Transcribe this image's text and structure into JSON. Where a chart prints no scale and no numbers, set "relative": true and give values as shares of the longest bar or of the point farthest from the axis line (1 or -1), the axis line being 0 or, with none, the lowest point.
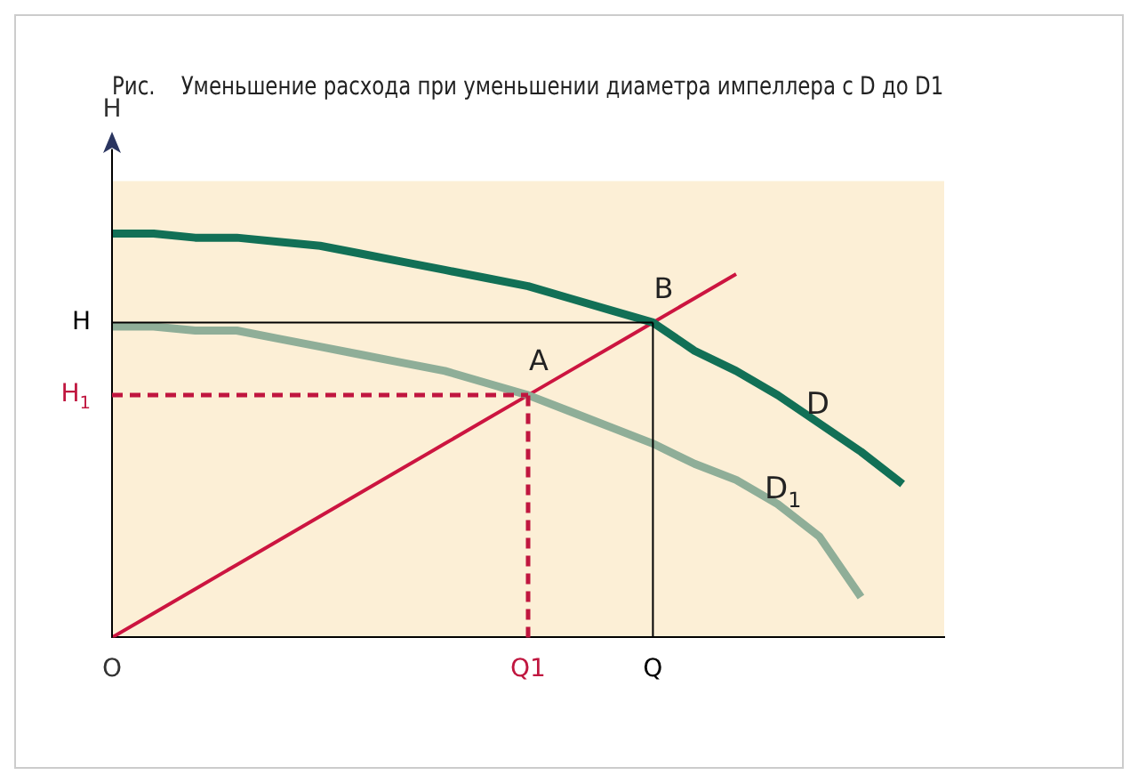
{
  "chart_data": {
    "type": "line",
    "title": "Рис.    Уменьшение расхода при уменьшении диаметра импеллера с D до D1",
    "ylabel": "H",
    "relative": true,
    "legend": false,
    "grid": false,
    "marker": "none",
    "categories": [
      "O",
      null,
      null,
      null,
      null,
      null,
      null,
      null,
      null,
      null,
      "Q1",
      null,
      null,
      "Q",
      null,
      null,
      null,
      null,
      null,
      null,
      null
    ],
    "series": [
      {
        "name": "D",
        "color": "#127056",
        "values": [
          1.0,
          1.0,
          0.99,
          0.99,
          0.98,
          0.97,
          0.95,
          0.93,
          0.91,
          0.89,
          0.87,
          0.84,
          0.81,
          0.78,
          0.71,
          0.66,
          0.6,
          0.53,
          0.46,
          0.38,
          null
        ]
      },
      {
        "name": "D$_{1}$",
        "color": "#8fae98",
        "values": [
          0.77,
          0.77,
          0.76,
          0.76,
          0.74,
          0.72,
          0.7,
          0.68,
          0.66,
          0.63,
          0.6,
          0.56,
          0.52,
          0.48,
          0.43,
          0.39,
          0.33,
          0.25,
          0.1,
          null,
          null
        ]
      },
      {
        "color": "#cc1540",
        "values": [
          0,
          0.06,
          0.12,
          0.18,
          0.24,
          0.3,
          0.36,
          0.42,
          0.48,
          0.54,
          0.6,
          0.66,
          0.72,
          0.78,
          0.84,
          0.9,
          null,
          null,
          null,
          null,
          null
        ]
      }
    ],
    "ref_lines": [
      {
        "axis": "y",
        "value": 0.78,
        "label": "H",
        "color": "#000000",
        "line_style": "solid"
      },
      {
        "axis": "y",
        "value": 0.6,
        "label": "H$_{1}$",
        "color": "#c0163f",
        "line_style": "dashed"
      },
      {
        "axis": "x",
        "value": "Q1",
        "color": "#c0163f",
        "line_style": "dashed"
      },
      {
        "axis": "x",
        "value": "Q",
        "color": "#000000",
        "line_style": "solid"
      }
    ],
    "annotations": [
      {
        "text": "A",
        "x": "Q1",
        "y": 0.6
      },
      {
        "text": "B",
        "x": "Q",
        "y": 0.78
      }
    ]
  }
}
